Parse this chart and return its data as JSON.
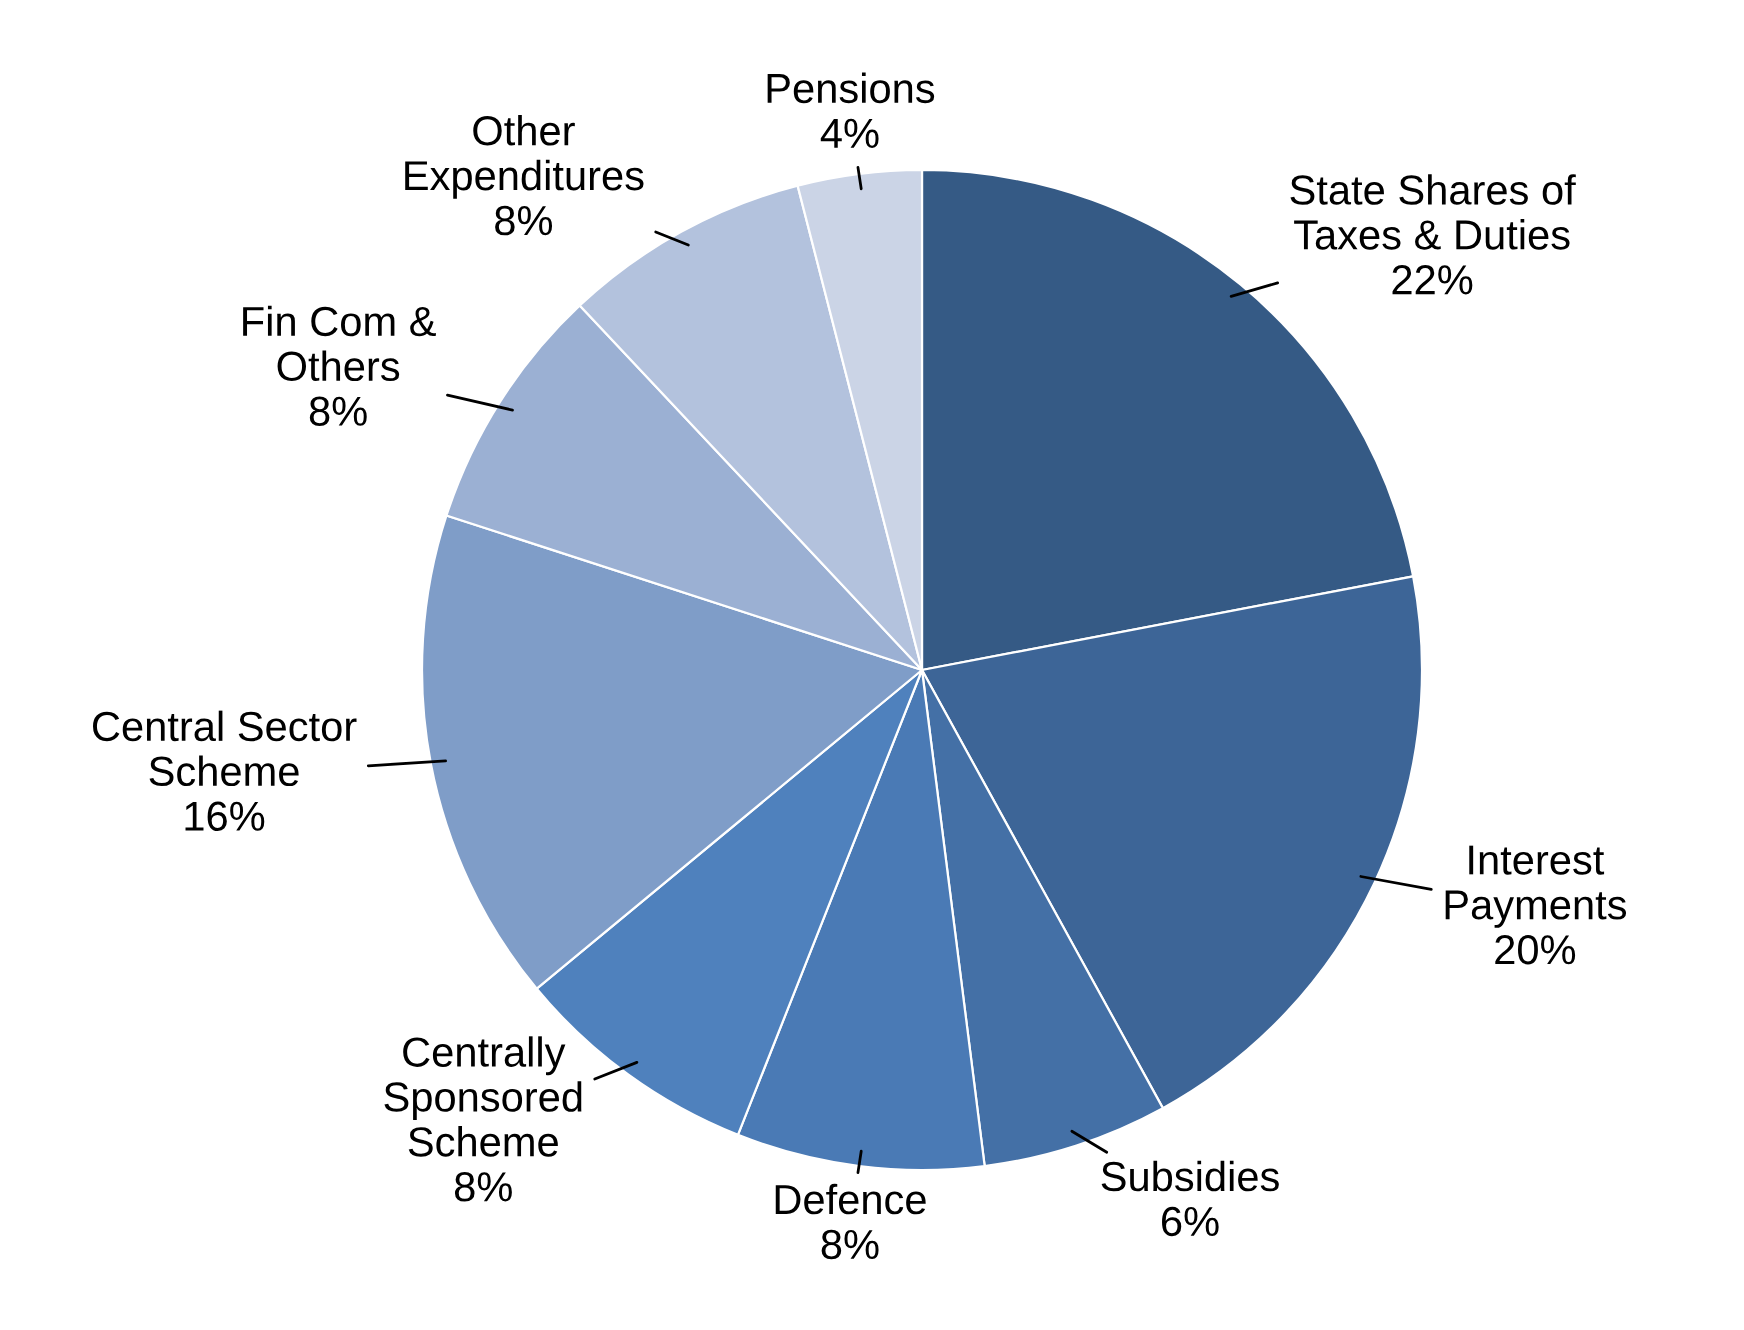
{
  "chart_data": {
    "type": "pie",
    "categories": [
      "State Shares of\nTaxes & Duties",
      "Interest\nPayments",
      "Subsidies",
      "Defence",
      "Centrally\nSponsored\nScheme",
      "Central Sector\nScheme",
      "Fin Com &\nOthers",
      "Other\nExpenditures",
      "Pensions"
    ],
    "values": [
      22,
      20,
      6,
      8,
      8,
      16,
      8,
      8,
      4
    ],
    "value_labels": [
      "22%",
      "20%",
      "6%",
      "8%",
      "8%",
      "16%",
      "8%",
      "8%",
      "4%"
    ],
    "colors": [
      "#355a85",
      "#3d6597",
      "#4470a6",
      "#4a7ab5",
      "#4f81bd",
      "#7f9dc8",
      "#9bb0d3",
      "#b3c2dd",
      "#cbd4e6"
    ]
  }
}
